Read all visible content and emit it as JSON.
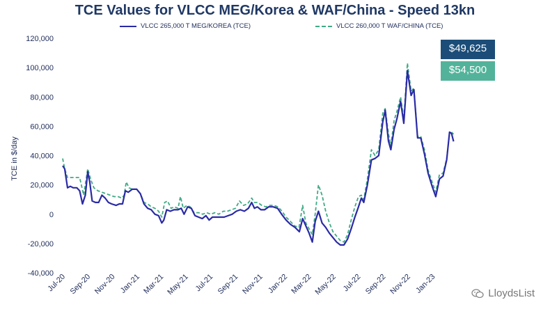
{
  "chart_data": {
    "type": "line",
    "title": "TCE Values for VLCC MEG/Korea & WAF/China - Speed 13kn",
    "ylabel": "TCE in $/day",
    "xlabel": "",
    "ylim": [
      -40000,
      120000
    ],
    "yticks": [
      "120,000",
      "100,000",
      "80,000",
      "60,000",
      "40,000",
      "20,000",
      "0",
      "-20,000",
      "-40,000"
    ],
    "ytick_values": [
      120000,
      100000,
      80000,
      60000,
      40000,
      20000,
      0,
      -20000,
      -40000
    ],
    "xtick_labels": [
      "Jul-20",
      "Sep-20",
      "Nov-20",
      "Jan-21",
      "Mar-21",
      "May-21",
      "Jul-21",
      "Sep-21",
      "Nov-21",
      "Jan-22",
      "Mar-22",
      "May-22",
      "Jul-22",
      "Sep-22",
      "Nov-22",
      "Jan-23"
    ],
    "xrange": [
      "2020-07-01",
      "2023-02-28"
    ],
    "legend_position": "top",
    "grid": false,
    "series": [
      {
        "name": "VLCC 265,000 T MEG/KOREA (TCE)",
        "color": "#2a2aa6",
        "style": "solid",
        "points": [
          [
            "2020-07-01",
            33000
          ],
          [
            "2020-07-06",
            31000
          ],
          [
            "2020-07-13",
            18000
          ],
          [
            "2020-07-20",
            19000
          ],
          [
            "2020-07-27",
            18000
          ],
          [
            "2020-08-05",
            18000
          ],
          [
            "2020-08-12",
            16000
          ],
          [
            "2020-08-19",
            7000
          ],
          [
            "2020-08-26",
            13000
          ],
          [
            "2020-09-01",
            29000
          ],
          [
            "2020-09-06",
            22000
          ],
          [
            "2020-09-12",
            9000
          ],
          [
            "2020-09-20",
            8000
          ],
          [
            "2020-09-28",
            8000
          ],
          [
            "2020-10-06",
            13000
          ],
          [
            "2020-10-14",
            11000
          ],
          [
            "2020-10-22",
            8000
          ],
          [
            "2020-10-30",
            7000
          ],
          [
            "2020-11-10",
            6000
          ],
          [
            "2020-11-18",
            7000
          ],
          [
            "2020-11-26",
            7000
          ],
          [
            "2020-12-03",
            16000
          ],
          [
            "2020-12-10",
            15000
          ],
          [
            "2020-12-20",
            17000
          ],
          [
            "2020-12-31",
            17000
          ],
          [
            "2021-01-09",
            14000
          ],
          [
            "2021-01-18",
            7000
          ],
          [
            "2021-01-27",
            4000
          ],
          [
            "2021-02-05",
            3000
          ],
          [
            "2021-02-14",
            0
          ],
          [
            "2021-02-23",
            -1000
          ],
          [
            "2021-03-03",
            -6000
          ],
          [
            "2021-03-08",
            -4000
          ],
          [
            "2021-03-15",
            3000
          ],
          [
            "2021-03-24",
            2000
          ],
          [
            "2021-04-02",
            3000
          ],
          [
            "2021-04-12",
            3000
          ],
          [
            "2021-04-20",
            4000
          ],
          [
            "2021-04-27",
            0
          ],
          [
            "2021-05-06",
            5000
          ],
          [
            "2021-05-15",
            4000
          ],
          [
            "2021-05-24",
            -1000
          ],
          [
            "2021-06-02",
            -2000
          ],
          [
            "2021-06-11",
            -3000
          ],
          [
            "2021-06-20",
            -1000
          ],
          [
            "2021-06-28",
            -4000
          ],
          [
            "2021-07-06",
            -2000
          ],
          [
            "2021-07-15",
            -2000
          ],
          [
            "2021-07-25",
            -2000
          ],
          [
            "2021-08-04",
            -2000
          ],
          [
            "2021-08-14",
            -1000
          ],
          [
            "2021-08-24",
            0
          ],
          [
            "2021-09-03",
            2000
          ],
          [
            "2021-09-13",
            3000
          ],
          [
            "2021-09-23",
            2000
          ],
          [
            "2021-10-03",
            4000
          ],
          [
            "2021-10-11",
            8000
          ],
          [
            "2021-10-18",
            4000
          ],
          [
            "2021-10-25",
            5000
          ],
          [
            "2021-11-03",
            3000
          ],
          [
            "2021-11-12",
            3000
          ],
          [
            "2021-11-22",
            5000
          ],
          [
            "2021-12-03",
            5000
          ],
          [
            "2021-12-14",
            4000
          ],
          [
            "2021-12-24",
            0
          ],
          [
            "2022-01-04",
            -4000
          ],
          [
            "2022-01-15",
            -7000
          ],
          [
            "2022-01-26",
            -9000
          ],
          [
            "2022-02-06",
            -12000
          ],
          [
            "2022-02-14",
            -3000
          ],
          [
            "2022-02-22",
            -8000
          ],
          [
            "2022-03-02",
            -13000
          ],
          [
            "2022-03-10",
            -19000
          ],
          [
            "2022-03-17",
            -5000
          ],
          [
            "2022-03-25",
            2000
          ],
          [
            "2022-04-03",
            -6000
          ],
          [
            "2022-04-12",
            -9000
          ],
          [
            "2022-04-21",
            -13000
          ],
          [
            "2022-04-30",
            -16000
          ],
          [
            "2022-05-09",
            -19000
          ],
          [
            "2022-05-18",
            -21000
          ],
          [
            "2022-05-27",
            -21000
          ],
          [
            "2022-06-05",
            -17000
          ],
          [
            "2022-06-14",
            -10000
          ],
          [
            "2022-06-23",
            -2000
          ],
          [
            "2022-07-02",
            5000
          ],
          [
            "2022-07-09",
            11000
          ],
          [
            "2022-07-15",
            8000
          ],
          [
            "2022-07-24",
            20000
          ],
          [
            "2022-08-03",
            37000
          ],
          [
            "2022-08-12",
            38000
          ],
          [
            "2022-08-21",
            40000
          ],
          [
            "2022-08-31",
            63000
          ],
          [
            "2022-09-06",
            71000
          ],
          [
            "2022-09-14",
            50000
          ],
          [
            "2022-09-20",
            44000
          ],
          [
            "2022-09-28",
            58000
          ],
          [
            "2022-10-05",
            65000
          ],
          [
            "2022-10-14",
            77000
          ],
          [
            "2022-10-22",
            62000
          ],
          [
            "2022-10-31",
            98000
          ],
          [
            "2022-11-09",
            81000
          ],
          [
            "2022-11-16",
            85000
          ],
          [
            "2022-11-25",
            52000
          ],
          [
            "2022-12-03",
            52000
          ],
          [
            "2022-12-12",
            41000
          ],
          [
            "2022-12-21",
            28000
          ],
          [
            "2022-12-31",
            19000
          ],
          [
            "2023-01-09",
            12000
          ],
          [
            "2023-01-18",
            24000
          ],
          [
            "2023-01-27",
            26000
          ],
          [
            "2023-02-05",
            37000
          ],
          [
            "2023-02-12",
            56000
          ],
          [
            "2023-02-17",
            55000
          ],
          [
            "2023-02-22",
            49625
          ]
        ]
      },
      {
        "name": "VLCC 260,000 T WAF/CHINA (TCE)",
        "color": "#3faa84",
        "style": "dashed",
        "points": [
          [
            "2020-07-01",
            38000
          ],
          [
            "2020-07-06",
            31000
          ],
          [
            "2020-07-13",
            25000
          ],
          [
            "2020-07-22",
            25000
          ],
          [
            "2020-08-03",
            25000
          ],
          [
            "2020-08-12",
            25000
          ],
          [
            "2020-08-22",
            13000
          ],
          [
            "2020-09-01",
            31000
          ],
          [
            "2020-09-08",
            24000
          ],
          [
            "2020-09-16",
            18000
          ],
          [
            "2020-09-26",
            16000
          ],
          [
            "2020-10-06",
            15000
          ],
          [
            "2020-10-16",
            14000
          ],
          [
            "2020-10-26",
            13000
          ],
          [
            "2020-11-05",
            12000
          ],
          [
            "2020-11-15",
            12000
          ],
          [
            "2020-11-24",
            11000
          ],
          [
            "2020-11-30",
            13000
          ],
          [
            "2020-12-05",
            22000
          ],
          [
            "2020-12-12",
            18000
          ],
          [
            "2020-12-20",
            17000
          ],
          [
            "2020-12-31",
            17000
          ],
          [
            "2021-01-09",
            14000
          ],
          [
            "2021-01-18",
            8000
          ],
          [
            "2021-01-27",
            7000
          ],
          [
            "2021-02-05",
            5000
          ],
          [
            "2021-02-14",
            4000
          ],
          [
            "2021-02-23",
            2000
          ],
          [
            "2021-03-03",
            -2000
          ],
          [
            "2021-03-10",
            8000
          ],
          [
            "2021-03-17",
            9000
          ],
          [
            "2021-03-26",
            4000
          ],
          [
            "2021-04-03",
            5000
          ],
          [
            "2021-04-12",
            4000
          ],
          [
            "2021-04-18",
            12000
          ],
          [
            "2021-04-25",
            4000
          ],
          [
            "2021-05-04",
            6000
          ],
          [
            "2021-05-12",
            5000
          ],
          [
            "2021-05-22",
            1000
          ],
          [
            "2021-06-02",
            1000
          ],
          [
            "2021-06-12",
            0
          ],
          [
            "2021-06-22",
            1000
          ],
          [
            "2021-07-02",
            0
          ],
          [
            "2021-07-12",
            1000
          ],
          [
            "2021-07-22",
            0
          ],
          [
            "2021-08-02",
            2000
          ],
          [
            "2021-08-12",
            2000
          ],
          [
            "2021-08-22",
            3000
          ],
          [
            "2021-09-01",
            4000
          ],
          [
            "2021-09-11",
            9000
          ],
          [
            "2021-09-21",
            6000
          ],
          [
            "2021-10-01",
            7000
          ],
          [
            "2021-10-11",
            11000
          ],
          [
            "2021-10-18",
            8000
          ],
          [
            "2021-10-26",
            8000
          ],
          [
            "2021-11-05",
            6000
          ],
          [
            "2021-11-15",
            5000
          ],
          [
            "2021-11-25",
            6000
          ],
          [
            "2021-12-05",
            6000
          ],
          [
            "2021-12-15",
            5000
          ],
          [
            "2021-12-25",
            2000
          ],
          [
            "2022-01-04",
            -2000
          ],
          [
            "2022-01-15",
            -5000
          ],
          [
            "2022-01-25",
            -8000
          ],
          [
            "2022-02-05",
            -9000
          ],
          [
            "2022-02-14",
            6000
          ],
          [
            "2022-02-22",
            -6000
          ],
          [
            "2022-03-02",
            -10000
          ],
          [
            "2022-03-10",
            -14000
          ],
          [
            "2022-03-17",
            0
          ],
          [
            "2022-03-25",
            20000
          ],
          [
            "2022-04-03",
            13000
          ],
          [
            "2022-04-12",
            2000
          ],
          [
            "2022-04-21",
            -6000
          ],
          [
            "2022-04-30",
            -12000
          ],
          [
            "2022-05-09",
            -15000
          ],
          [
            "2022-05-18",
            -18000
          ],
          [
            "2022-05-27",
            -19000
          ],
          [
            "2022-06-05",
            -14000
          ],
          [
            "2022-06-14",
            -4000
          ],
          [
            "2022-06-23",
            5000
          ],
          [
            "2022-07-02",
            12000
          ],
          [
            "2022-07-09",
            13000
          ],
          [
            "2022-07-15",
            10000
          ],
          [
            "2022-07-24",
            24000
          ],
          [
            "2022-08-03",
            44000
          ],
          [
            "2022-08-12",
            40000
          ],
          [
            "2022-08-21",
            44000
          ],
          [
            "2022-08-31",
            69000
          ],
          [
            "2022-09-06",
            72000
          ],
          [
            "2022-09-14",
            55000
          ],
          [
            "2022-09-20",
            47000
          ],
          [
            "2022-09-28",
            64000
          ],
          [
            "2022-10-05",
            70000
          ],
          [
            "2022-10-14",
            80000
          ],
          [
            "2022-10-22",
            65000
          ],
          [
            "2022-10-31",
            103000
          ],
          [
            "2022-11-09",
            84000
          ],
          [
            "2022-11-16",
            86000
          ],
          [
            "2022-11-25",
            53000
          ],
          [
            "2022-12-03",
            53000
          ],
          [
            "2022-12-12",
            44000
          ],
          [
            "2022-12-21",
            30000
          ],
          [
            "2022-12-31",
            22000
          ],
          [
            "2023-01-09",
            15000
          ],
          [
            "2023-01-18",
            27000
          ],
          [
            "2023-01-27",
            28000
          ],
          [
            "2023-02-05",
            38000
          ],
          [
            "2023-02-12",
            55000
          ],
          [
            "2023-02-17",
            56000
          ],
          [
            "2023-02-22",
            54500
          ]
        ]
      }
    ],
    "annotations": [
      {
        "label": "$49,625",
        "series": 0,
        "color": "#1b4d78"
      },
      {
        "label": "$54,500",
        "series": 1,
        "color": "#52b39a"
      }
    ]
  },
  "watermark": {
    "text": "LloydsList",
    "icon": "wechat-icon"
  }
}
